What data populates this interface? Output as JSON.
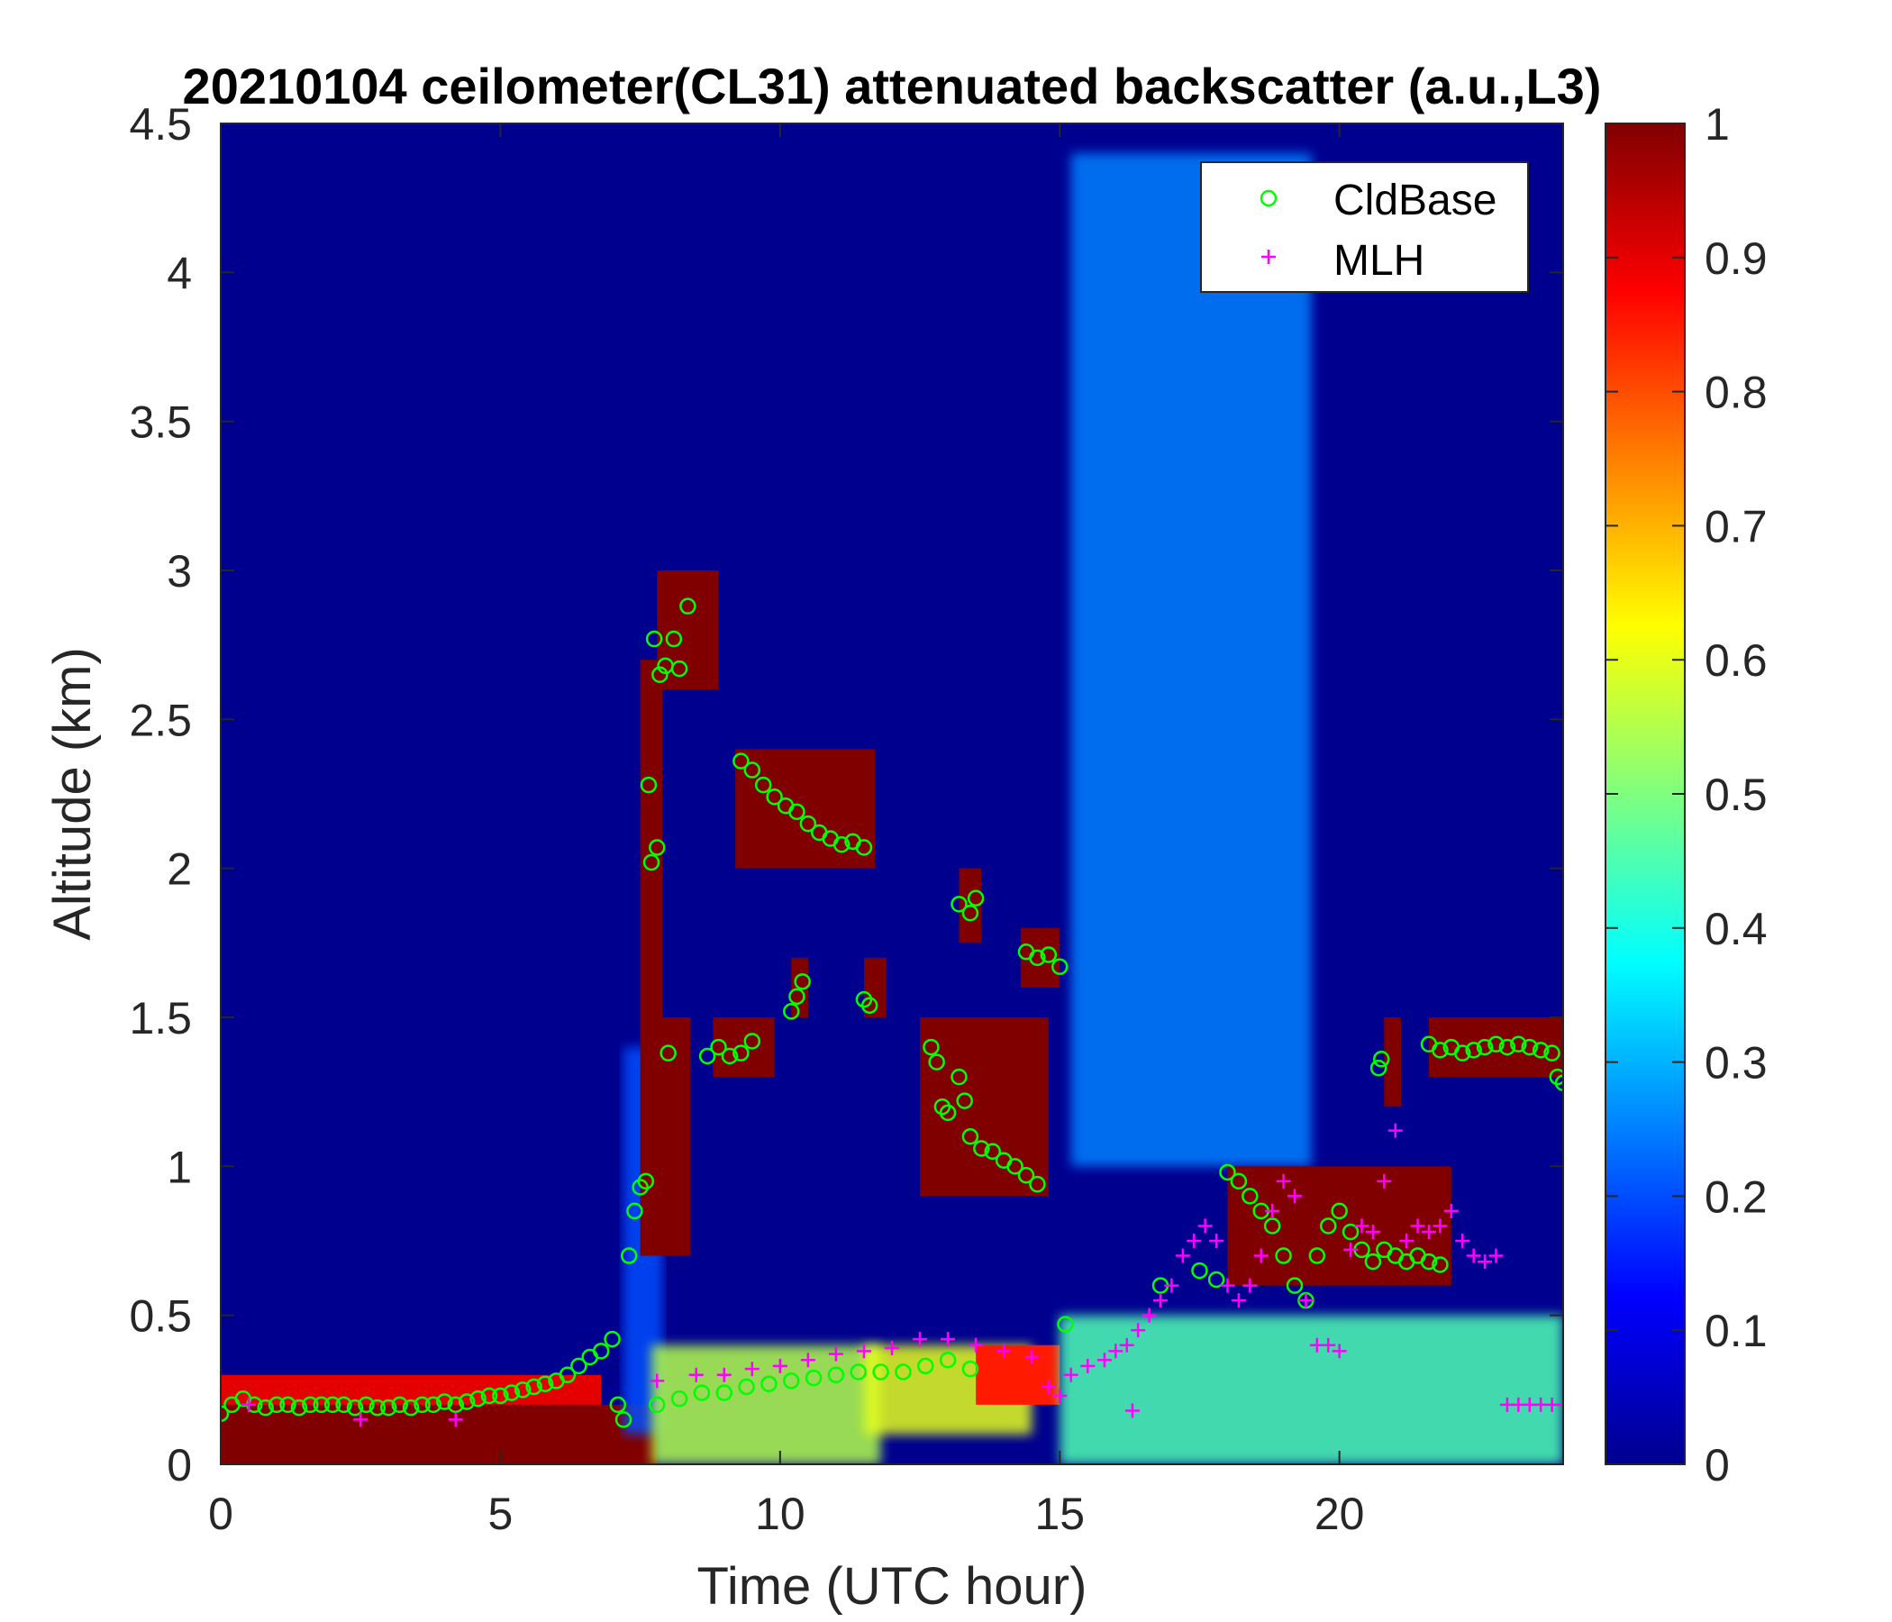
{
  "chart_data": {
    "type": "heatmap",
    "title": "20210104 ceilometer(CL31) attenuated backscatter (a.u.,L3)",
    "xlabel": "Time (UTC hour)",
    "ylabel": "Altitude (km)",
    "xlim": [
      0,
      24
    ],
    "ylim": [
      0,
      4.5
    ],
    "x_ticks": [
      0,
      5,
      10,
      15,
      20
    ],
    "x_tick_labels": [
      "0",
      "5",
      "10",
      "15",
      "20"
    ],
    "y_ticks": [
      0,
      0.5,
      1,
      1.5,
      2,
      2.5,
      3,
      3.5,
      4,
      4.5
    ],
    "y_tick_labels": [
      "0",
      "0.5",
      "1",
      "1.5",
      "2",
      "2.5",
      "3",
      "3.5",
      "4",
      "4.5"
    ],
    "colorbar": {
      "colormap": "jet",
      "range": [
        0,
        1
      ],
      "ticks": [
        0,
        0.1,
        0.2,
        0.3,
        0.4,
        0.5,
        0.6,
        0.7,
        0.8,
        0.9,
        1
      ],
      "tick_labels": [
        "0",
        "0.1",
        "0.2",
        "0.3",
        "0.4",
        "0.5",
        "0.6",
        "0.7",
        "0.8",
        "0.9",
        "1"
      ]
    },
    "legend": {
      "placement": "top-right",
      "entries": [
        {
          "label": "CldBase",
          "marker": "circle",
          "color": "#00ff00"
        },
        {
          "label": "MLH",
          "marker": "plus",
          "color": "#ff00ff"
        }
      ]
    },
    "heatmap_features": [
      {
        "x0": 0,
        "x1": 7.8,
        "y0": 0,
        "y1": 0.2,
        "value": 1
      },
      {
        "x0": 0,
        "x1": 6.8,
        "y0": 0.2,
        "y1": 0.3,
        "value": 0.9
      },
      {
        "x0": 7.2,
        "x1": 7.9,
        "y0": 0.1,
        "y1": 1.4,
        "value": 0.2
      },
      {
        "x0": 7.7,
        "x1": 11.8,
        "y0": 0,
        "y1": 0.4,
        "value": 0.55
      },
      {
        "x0": 7.7,
        "x1": 8.4,
        "y0": 0.7,
        "y1": 1.5,
        "value": 1
      },
      {
        "x0": 7.5,
        "x1": 7.9,
        "y0": 0.7,
        "y1": 2.7,
        "value": 1
      },
      {
        "x0": 7.8,
        "x1": 8.9,
        "y0": 2.6,
        "y1": 3.0,
        "value": 1
      },
      {
        "x0": 9.2,
        "x1": 11.7,
        "y0": 2.0,
        "y1": 2.4,
        "value": 1
      },
      {
        "x0": 8.8,
        "x1": 9.9,
        "y0": 1.3,
        "y1": 1.5,
        "value": 1
      },
      {
        "x0": 10.2,
        "x1": 10.5,
        "y0": 1.5,
        "y1": 1.7,
        "value": 1
      },
      {
        "x0": 11.5,
        "x1": 11.9,
        "y0": 1.5,
        "y1": 1.7,
        "value": 1
      },
      {
        "x0": 12.5,
        "x1": 14.8,
        "y0": 0.9,
        "y1": 1.5,
        "value": 1
      },
      {
        "x0": 13.2,
        "x1": 13.6,
        "y0": 1.75,
        "y1": 2.0,
        "value": 1
      },
      {
        "x0": 14.3,
        "x1": 15.0,
        "y0": 1.6,
        "y1": 1.8,
        "value": 1
      },
      {
        "x0": 11.5,
        "x1": 14.5,
        "y0": 0.1,
        "y1": 0.4,
        "value": 0.6
      },
      {
        "x0": 13.5,
        "x1": 15.0,
        "y0": 0.2,
        "y1": 0.4,
        "value": 0.85
      },
      {
        "x0": 15.0,
        "x1": 24,
        "y0": 0,
        "y1": 0.5,
        "value": 0.45
      },
      {
        "x0": 15.2,
        "x1": 19.5,
        "y0": 1.0,
        "y1": 4.4,
        "value": 0.25
      },
      {
        "x0": 18.0,
        "x1": 22.0,
        "y0": 0.6,
        "y1": 1.0,
        "value": 1
      },
      {
        "x0": 20.8,
        "x1": 21.1,
        "y0": 1.2,
        "y1": 1.5,
        "value": 1
      },
      {
        "x0": 21.6,
        "x1": 24,
        "y0": 1.3,
        "y1": 1.5,
        "value": 1
      }
    ],
    "series": [
      {
        "name": "CldBase",
        "marker": "circle",
        "color": "#00ff00",
        "points": [
          [
            0.0,
            0.17
          ],
          [
            0.2,
            0.2
          ],
          [
            0.4,
            0.22
          ],
          [
            0.6,
            0.2
          ],
          [
            0.8,
            0.19
          ],
          [
            1.0,
            0.2
          ],
          [
            1.2,
            0.2
          ],
          [
            1.4,
            0.19
          ],
          [
            1.6,
            0.2
          ],
          [
            1.8,
            0.2
          ],
          [
            2.0,
            0.2
          ],
          [
            2.2,
            0.2
          ],
          [
            2.4,
            0.19
          ],
          [
            2.6,
            0.2
          ],
          [
            2.8,
            0.19
          ],
          [
            3.0,
            0.19
          ],
          [
            3.2,
            0.2
          ],
          [
            3.4,
            0.19
          ],
          [
            3.6,
            0.2
          ],
          [
            3.8,
            0.2
          ],
          [
            4.0,
            0.21
          ],
          [
            4.2,
            0.2
          ],
          [
            4.4,
            0.21
          ],
          [
            4.6,
            0.22
          ],
          [
            4.8,
            0.23
          ],
          [
            5.0,
            0.23
          ],
          [
            5.2,
            0.24
          ],
          [
            5.4,
            0.25
          ],
          [
            5.6,
            0.26
          ],
          [
            5.8,
            0.27
          ],
          [
            6.0,
            0.28
          ],
          [
            6.2,
            0.3
          ],
          [
            6.4,
            0.33
          ],
          [
            6.6,
            0.36
          ],
          [
            6.8,
            0.38
          ],
          [
            7.0,
            0.42
          ],
          [
            7.1,
            0.2
          ],
          [
            7.2,
            0.15
          ],
          [
            7.3,
            0.7
          ],
          [
            7.4,
            0.85
          ],
          [
            7.5,
            0.93
          ],
          [
            7.6,
            0.95
          ],
          [
            7.65,
            2.28
          ],
          [
            7.7,
            2.02
          ],
          [
            7.8,
            2.07
          ],
          [
            7.75,
            2.77
          ],
          [
            7.85,
            2.65
          ],
          [
            7.95,
            2.68
          ],
          [
            8.1,
            2.77
          ],
          [
            8.2,
            2.67
          ],
          [
            8.35,
            2.88
          ],
          [
            8.0,
            1.38
          ],
          [
            8.7,
            1.37
          ],
          [
            8.9,
            1.4
          ],
          [
            9.1,
            1.37
          ],
          [
            9.3,
            1.38
          ],
          [
            9.5,
            1.42
          ],
          [
            9.3,
            2.36
          ],
          [
            9.5,
            2.33
          ],
          [
            9.7,
            2.28
          ],
          [
            9.9,
            2.24
          ],
          [
            10.1,
            2.21
          ],
          [
            10.3,
            2.19
          ],
          [
            10.5,
            2.15
          ],
          [
            10.7,
            2.12
          ],
          [
            10.9,
            2.1
          ],
          [
            11.1,
            2.08
          ],
          [
            11.3,
            2.09
          ],
          [
            11.5,
            2.07
          ],
          [
            10.2,
            1.52
          ],
          [
            10.3,
            1.57
          ],
          [
            10.4,
            1.62
          ],
          [
            11.5,
            1.56
          ],
          [
            11.6,
            1.54
          ],
          [
            7.8,
            0.2
          ],
          [
            8.2,
            0.22
          ],
          [
            8.6,
            0.24
          ],
          [
            9.0,
            0.24
          ],
          [
            9.4,
            0.26
          ],
          [
            9.8,
            0.27
          ],
          [
            10.2,
            0.28
          ],
          [
            10.6,
            0.29
          ],
          [
            11.0,
            0.3
          ],
          [
            11.4,
            0.31
          ],
          [
            11.8,
            0.31
          ],
          [
            12.2,
            0.31
          ],
          [
            12.6,
            0.33
          ],
          [
            13.0,
            0.35
          ],
          [
            13.4,
            0.32
          ],
          [
            12.7,
            1.4
          ],
          [
            12.8,
            1.35
          ],
          [
            12.9,
            1.2
          ],
          [
            13.0,
            1.18
          ],
          [
            13.2,
            1.3
          ],
          [
            13.3,
            1.22
          ],
          [
            13.4,
            1.1
          ],
          [
            13.6,
            1.06
          ],
          [
            13.8,
            1.05
          ],
          [
            14.0,
            1.02
          ],
          [
            14.2,
            1.0
          ],
          [
            14.4,
            0.97
          ],
          [
            14.6,
            0.94
          ],
          [
            13.2,
            1.88
          ],
          [
            13.4,
            1.85
          ],
          [
            13.5,
            1.9
          ],
          [
            14.4,
            1.72
          ],
          [
            14.6,
            1.7
          ],
          [
            14.8,
            1.71
          ],
          [
            15.0,
            1.67
          ],
          [
            15.1,
            0.47
          ],
          [
            16.8,
            0.6
          ],
          [
            17.5,
            0.65
          ],
          [
            17.8,
            0.62
          ],
          [
            18.0,
            0.98
          ],
          [
            18.2,
            0.95
          ],
          [
            18.4,
            0.9
          ],
          [
            18.6,
            0.85
          ],
          [
            18.8,
            0.8
          ],
          [
            19.0,
            0.7
          ],
          [
            19.2,
            0.6
          ],
          [
            19.4,
            0.55
          ],
          [
            19.6,
            0.7
          ],
          [
            19.8,
            0.8
          ],
          [
            20.0,
            0.85
          ],
          [
            20.2,
            0.78
          ],
          [
            20.4,
            0.72
          ],
          [
            20.6,
            0.68
          ],
          [
            20.8,
            0.72
          ],
          [
            21.0,
            0.7
          ],
          [
            21.2,
            0.68
          ],
          [
            21.4,
            0.7
          ],
          [
            21.6,
            0.68
          ],
          [
            21.8,
            0.67
          ],
          [
            20.7,
            1.33
          ],
          [
            20.75,
            1.36
          ],
          [
            21.6,
            1.41
          ],
          [
            21.8,
            1.39
          ],
          [
            22.0,
            1.4
          ],
          [
            22.2,
            1.38
          ],
          [
            22.4,
            1.39
          ],
          [
            22.6,
            1.4
          ],
          [
            22.8,
            1.41
          ],
          [
            23.0,
            1.4
          ],
          [
            23.2,
            1.41
          ],
          [
            23.4,
            1.4
          ],
          [
            23.6,
            1.39
          ],
          [
            23.8,
            1.38
          ],
          [
            24.0,
            1.28
          ],
          [
            23.9,
            1.3
          ]
        ]
      },
      {
        "name": "MLH",
        "marker": "plus",
        "color": "#ff00ff",
        "points": [
          [
            0.5,
            0.2
          ],
          [
            2.5,
            0.15
          ],
          [
            4.2,
            0.15
          ],
          [
            7.8,
            0.28
          ],
          [
            8.5,
            0.3
          ],
          [
            9.0,
            0.3
          ],
          [
            9.5,
            0.32
          ],
          [
            10.0,
            0.33
          ],
          [
            10.5,
            0.35
          ],
          [
            11.0,
            0.37
          ],
          [
            11.5,
            0.38
          ],
          [
            12.0,
            0.39
          ],
          [
            12.5,
            0.42
          ],
          [
            13.0,
            0.42
          ],
          [
            13.5,
            0.4
          ],
          [
            14.0,
            0.38
          ],
          [
            14.5,
            0.36
          ],
          [
            14.8,
            0.26
          ],
          [
            15.0,
            0.23
          ],
          [
            15.2,
            0.3
          ],
          [
            15.5,
            0.33
          ],
          [
            15.8,
            0.35
          ],
          [
            16.0,
            0.38
          ],
          [
            16.2,
            0.4
          ],
          [
            16.4,
            0.45
          ],
          [
            16.3,
            0.18
          ],
          [
            16.6,
            0.5
          ],
          [
            16.8,
            0.55
          ],
          [
            17.0,
            0.6
          ],
          [
            17.2,
            0.7
          ],
          [
            17.4,
            0.75
          ],
          [
            17.6,
            0.8
          ],
          [
            17.8,
            0.75
          ],
          [
            18.0,
            0.6
          ],
          [
            18.2,
            0.55
          ],
          [
            18.4,
            0.6
          ],
          [
            18.6,
            0.7
          ],
          [
            18.8,
            0.85
          ],
          [
            19.0,
            0.95
          ],
          [
            19.2,
            0.9
          ],
          [
            19.4,
            0.55
          ],
          [
            19.6,
            0.4
          ],
          [
            19.8,
            0.4
          ],
          [
            20.0,
            0.38
          ],
          [
            20.2,
            0.72
          ],
          [
            20.4,
            0.8
          ],
          [
            20.6,
            0.78
          ],
          [
            20.8,
            0.95
          ],
          [
            21.0,
            1.12
          ],
          [
            21.2,
            0.75
          ],
          [
            21.4,
            0.8
          ],
          [
            21.6,
            0.78
          ],
          [
            21.8,
            0.8
          ],
          [
            22.0,
            0.85
          ],
          [
            22.2,
            0.75
          ],
          [
            22.4,
            0.7
          ],
          [
            22.6,
            0.68
          ],
          [
            22.8,
            0.7
          ],
          [
            23.0,
            0.2
          ],
          [
            23.2,
            0.2
          ],
          [
            23.4,
            0.2
          ],
          [
            23.6,
            0.2
          ],
          [
            23.8,
            0.2
          ],
          [
            24.0,
            0.2
          ]
        ]
      }
    ]
  }
}
